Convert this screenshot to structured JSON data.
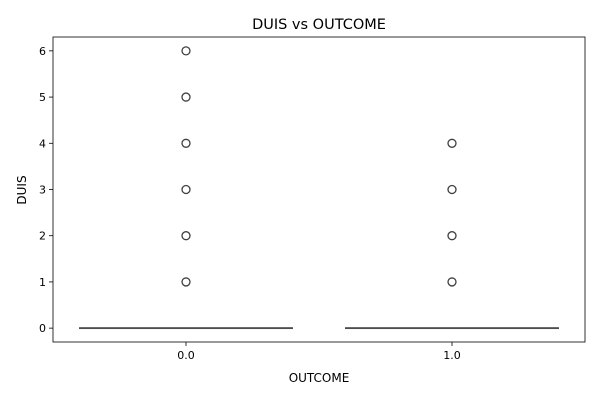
{
  "chart_data": {
    "type": "box",
    "title": "DUIS vs OUTCOME",
    "xlabel": "OUTCOME",
    "ylabel": "DUIS",
    "categories": [
      "0.0",
      "1.0"
    ],
    "ylim": [
      -0.3,
      6.3
    ],
    "yticks": [
      0,
      1,
      2,
      3,
      4,
      5,
      6
    ],
    "grid": false,
    "legend": "none",
    "boxes": [
      {
        "category": "0.0",
        "min": 0,
        "q1": 0,
        "median": 0,
        "q3": 0,
        "max": 0,
        "outliers": [
          1,
          2,
          3,
          4,
          5,
          6
        ]
      },
      {
        "category": "1.0",
        "min": 0,
        "q1": 0,
        "median": 0,
        "q3": 0,
        "max": 0,
        "outliers": [
          1,
          2,
          3,
          4
        ]
      }
    ],
    "colors": {
      "box_edge": "#4d4d4d",
      "outlier_edge": "#3f3f3f",
      "axis": "#000000"
    }
  }
}
